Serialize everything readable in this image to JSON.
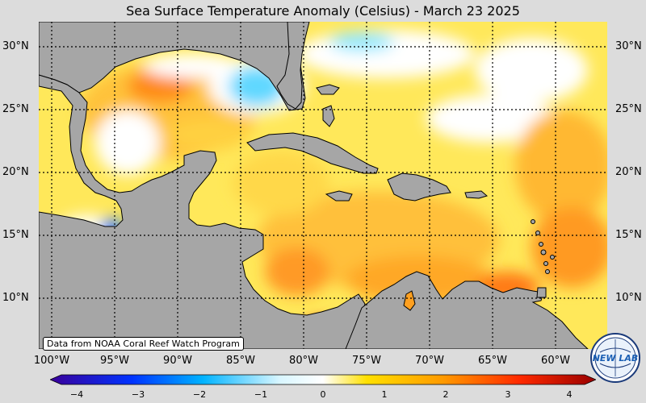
{
  "title": "Sea Surface Temperature Anomaly (Celsius) - March 23 2025",
  "credit": "Data from NOAA Coral Reef Watch Program",
  "logo_text": "NEW LAB",
  "lat_labels": [
    "30°N",
    "25°N",
    "20°N",
    "15°N",
    "10°N"
  ],
  "lon_labels": [
    "100°W",
    "95°W",
    "90°W",
    "85°W",
    "80°W",
    "75°W",
    "70°W",
    "65°W",
    "60°W"
  ],
  "colorbar": {
    "ticks": [
      "−4",
      "−3",
      "−2",
      "−1",
      "0",
      "1",
      "2",
      "3",
      "4"
    ],
    "colors": [
      "#3a0099",
      "#0033ff",
      "#00b3ff",
      "#ffffff",
      "#ffe000",
      "#ff9a00",
      "#ff2a00",
      "#990000"
    ]
  },
  "colors": {
    "land": "#a6a6a6",
    "ocean_base": "#fff0a0",
    "grid": "#000000"
  }
}
